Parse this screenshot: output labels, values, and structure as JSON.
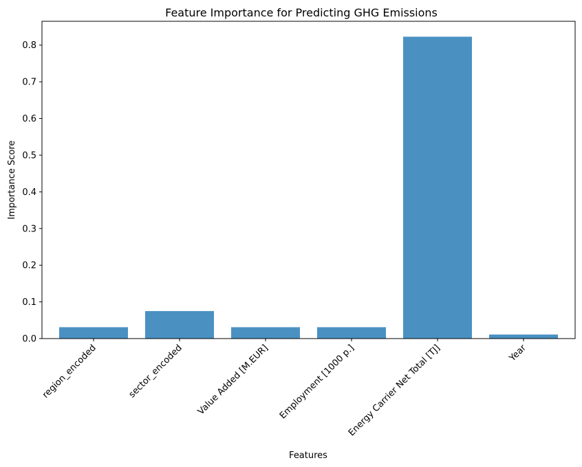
{
  "chart_data": {
    "type": "bar",
    "title": "Feature Importance for Predicting GHG Emissions",
    "xlabel": "Features",
    "ylabel": "Importance Score",
    "categories": [
      "region_encoded",
      "sector_encoded",
      "Value Added [M.EUR]",
      "Employment [1000 p.]",
      "Energy Carrier Net Total [TJ]",
      "Year"
    ],
    "values": [
      0.031,
      0.075,
      0.031,
      0.031,
      0.823,
      0.011
    ],
    "ylim": [
      0,
      0.865
    ],
    "yticks": [
      "0.0",
      "0.1",
      "0.2",
      "0.3",
      "0.4",
      "0.5",
      "0.6",
      "0.7",
      "0.8"
    ],
    "ytick_values": [
      0,
      0.1,
      0.2,
      0.3,
      0.4,
      0.5,
      0.6,
      0.7,
      0.8
    ],
    "bar_color": "#4a91c2",
    "grid": false,
    "legend": "none"
  }
}
